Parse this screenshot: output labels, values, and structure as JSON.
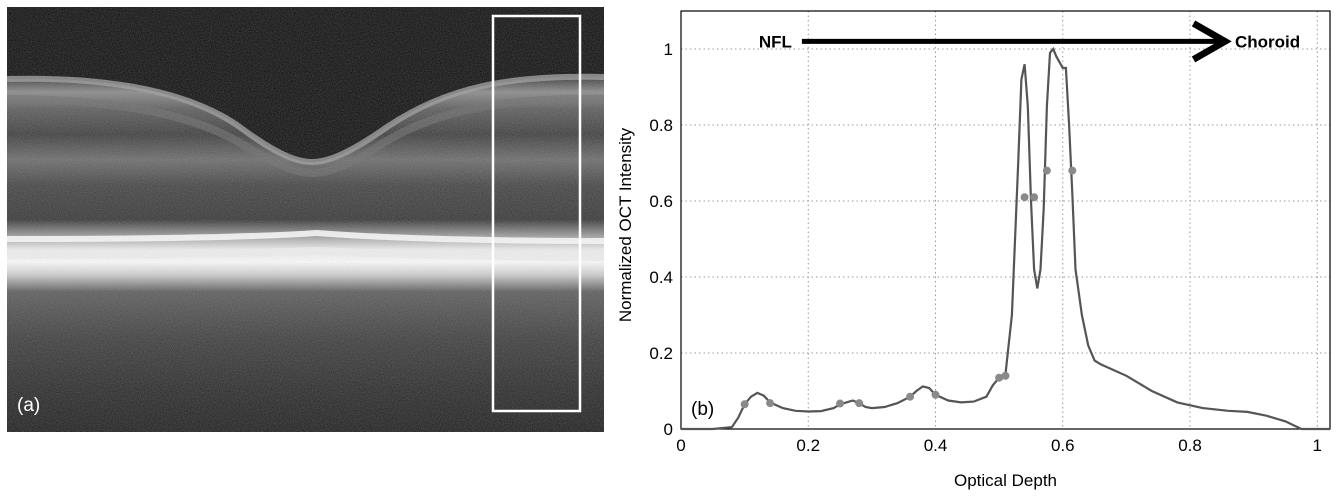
{
  "panel_a": {
    "label": "(a)",
    "image_description_icon": "oct-bscan-image"
  },
  "chart_data": {
    "type": "line",
    "panel_label": "(b)",
    "title": "",
    "xlabel": "Optical Depth",
    "ylabel": "Normalized OCT Intensity",
    "xlim": [
      0,
      1.02
    ],
    "ylim": [
      0,
      1.1
    ],
    "xticks": [
      0,
      0.2,
      0.4,
      0.6,
      0.8,
      1
    ],
    "xtick_labels": [
      "0",
      "0.2",
      "0.4",
      "0.6",
      "0.8",
      "1"
    ],
    "yticks": [
      0,
      0.2,
      0.4,
      0.6,
      0.8,
      1
    ],
    "ytick_labels": [
      "0",
      "0.2",
      "0.4",
      "0.6",
      "0.8",
      "1"
    ],
    "grid": true,
    "line_color": "#555555",
    "marker_color": "#8a8a8a",
    "annotation": {
      "start_label": "NFL",
      "end_label": "Choroid",
      "arrow_from_x": 0.19,
      "arrow_to_x": 0.855,
      "arrow_y": 1.02
    },
    "series": [
      {
        "x": [
          0,
          0.05,
          0.08,
          0.09,
          0.1,
          0.11,
          0.12,
          0.13,
          0.14,
          0.16,
          0.18,
          0.2,
          0.22,
          0.24,
          0.25,
          0.26,
          0.27,
          0.28,
          0.29,
          0.3,
          0.32,
          0.34,
          0.36,
          0.37,
          0.38,
          0.39,
          0.4,
          0.42,
          0.44,
          0.46,
          0.48,
          0.49,
          0.5,
          0.51,
          0.52,
          0.53,
          0.535,
          0.54,
          0.545,
          0.55,
          0.555,
          0.56,
          0.565,
          0.57,
          0.575,
          0.58,
          0.585,
          0.59,
          0.6,
          0.605,
          0.61,
          0.615,
          0.62,
          0.63,
          0.64,
          0.65,
          0.66,
          0.7,
          0.74,
          0.78,
          0.82,
          0.86,
          0.89,
          0.92,
          0.95,
          0.975,
          1.02
        ],
        "y": [
          0.0,
          0.0,
          0.005,
          0.03,
          0.065,
          0.085,
          0.095,
          0.088,
          0.07,
          0.055,
          0.048,
          0.046,
          0.047,
          0.055,
          0.065,
          0.07,
          0.075,
          0.068,
          0.058,
          0.055,
          0.058,
          0.068,
          0.085,
          0.1,
          0.112,
          0.108,
          0.09,
          0.075,
          0.07,
          0.072,
          0.085,
          0.115,
          0.135,
          0.145,
          0.3,
          0.7,
          0.92,
          0.96,
          0.85,
          0.6,
          0.42,
          0.37,
          0.42,
          0.58,
          0.85,
          0.99,
          1.0,
          0.98,
          0.95,
          0.95,
          0.8,
          0.62,
          0.42,
          0.3,
          0.22,
          0.18,
          0.17,
          0.14,
          0.1,
          0.07,
          0.055,
          0.048,
          0.045,
          0.035,
          0.02,
          0.0,
          0.0
        ]
      }
    ],
    "markers": {
      "x": [
        0.1,
        0.14,
        0.25,
        0.28,
        0.36,
        0.4,
        0.5,
        0.51,
        0.54,
        0.555,
        0.575,
        0.615
      ],
      "y": [
        0.065,
        0.068,
        0.067,
        0.068,
        0.085,
        0.09,
        0.135,
        0.14,
        0.61,
        0.61,
        0.68,
        0.68
      ]
    }
  }
}
